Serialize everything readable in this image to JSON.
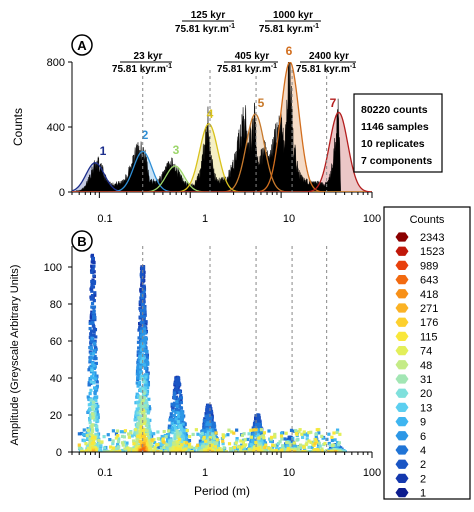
{
  "panel_a": {
    "letter": "A",
    "ylabel": "Counts",
    "yticks": [
      "0",
      "400",
      "800"
    ],
    "xticks": [
      "0.1",
      "1",
      "10",
      "100"
    ],
    "stats": [
      "80220 counts",
      "1146 samples",
      "10 replicates",
      "7 components"
    ],
    "annotations": [
      {
        "line1": "23 kyr",
        "line2": "75.81 kyr.m",
        "sup": "-1"
      },
      {
        "line1": "125 kyr",
        "line2": "75.81 kyr.m",
        "sup": "-1"
      },
      {
        "line1": "405 kyr",
        "line2": "75.81 kyr.m",
        "sup": "-1"
      },
      {
        "line1": "1000 kyr",
        "line2": "75.81 kyr.m",
        "sup": "-1"
      },
      {
        "line1": "2400 kyr",
        "line2": "75.81 kyr.m",
        "sup": "-1"
      }
    ],
    "component_labels": [
      "1",
      "2",
      "3",
      "4",
      "5",
      "6",
      "7"
    ]
  },
  "panel_b": {
    "letter": "B",
    "ylabel": "Amplitude (Greyscale Arbitrary Units)",
    "xlabel": "Period (m)",
    "yticks": [
      "0",
      "20",
      "40",
      "60",
      "80",
      "100"
    ],
    "xticks": [
      "0.1",
      "1",
      "10",
      "100"
    ]
  },
  "legend": {
    "title": "Counts",
    "entries": [
      "2343",
      "1523",
      "989",
      "643",
      "418",
      "271",
      "176",
      "115",
      "74",
      "48",
      "31",
      "20",
      "13",
      "9",
      "6",
      "4",
      "2",
      "2",
      "1"
    ],
    "colors": [
      "#8b0000",
      "#c0180a",
      "#e8400c",
      "#f26a10",
      "#f79018",
      "#fbb224",
      "#fdd02e",
      "#f9e73a",
      "#e3ef5a",
      "#c4eb86",
      "#a2e6b4",
      "#7fe0dc",
      "#5ccff0",
      "#3eb5f0",
      "#2c97e6",
      "#2074d6",
      "#1a55c4",
      "#1438ae",
      "#0c1c8e"
    ]
  },
  "chart_data": [
    {
      "type": "area",
      "title": "",
      "ylabel": "Counts",
      "xscale": "log",
      "xlim": [
        0.05,
        100
      ],
      "ylim": [
        0,
        800
      ],
      "vlines_x": [
        0.3,
        1.65,
        5.3,
        13.2,
        31.7
      ],
      "components": [
        {
          "name": "1",
          "color": "#1c2e8c",
          "peak_x": 0.09,
          "peak_y": 180
        },
        {
          "name": "2",
          "color": "#2f8fd6",
          "peak_x": 0.3,
          "peak_y": 250
        },
        {
          "name": "3",
          "color": "#9cd66a",
          "peak_x": 0.68,
          "peak_y": 160
        },
        {
          "name": "4",
          "color": "#d9c21c",
          "peak_x": 1.6,
          "peak_y": 420
        },
        {
          "name": "5",
          "color": "#c87a2c",
          "peak_x": 5.2,
          "peak_y": 480
        },
        {
          "name": "6",
          "color": "#d26e1e",
          "peak_x": 12.5,
          "peak_y": 800
        },
        {
          "name": "7",
          "color": "#b41e1e",
          "peak_x": 43.0,
          "peak_y": 490
        }
      ],
      "histogram": {
        "x": [
          0.06,
          0.07,
          0.08,
          0.09,
          0.1,
          0.11,
          0.12,
          0.14,
          0.17,
          0.2,
          0.23,
          0.26,
          0.28,
          0.3,
          0.32,
          0.35,
          0.4,
          0.45,
          0.5,
          0.56,
          0.62,
          0.68,
          0.75,
          0.85,
          0.95,
          1.1,
          1.3,
          1.45,
          1.55,
          1.6,
          1.7,
          1.85,
          2.1,
          2.5,
          3.0,
          3.5,
          4.0,
          4.4,
          4.8,
          5.1,
          5.3,
          5.6,
          6.0,
          6.6,
          7.3,
          8.2,
          9.2,
          10.2,
          11.0,
          11.6,
          12.1,
          12.5,
          12.9,
          13.4,
          14.2,
          15.5,
          17.5,
          20.0,
          23.0,
          26.0,
          29.0,
          32.0,
          35.0,
          38.0,
          41.0,
          43.0,
          45.0
        ],
        "y": [
          8,
          30,
          110,
          175,
          165,
          120,
          70,
          45,
          55,
          90,
          170,
          250,
          240,
          260,
          215,
          90,
          60,
          70,
          100,
          140,
          165,
          150,
          110,
          60,
          45,
          40,
          120,
          300,
          420,
          390,
          200,
          90,
          70,
          80,
          160,
          330,
          450,
          300,
          360,
          470,
          320,
          140,
          200,
          250,
          180,
          280,
          380,
          420,
          260,
          500,
          700,
          800,
          650,
          320,
          230,
          120,
          70,
          60,
          50,
          55,
          45,
          60,
          100,
          220,
          380,
          490,
          60
        ]
      }
    },
    {
      "type": "heatmap",
      "title": "",
      "xlabel": "Period (m)",
      "ylabel": "Amplitude (Greyscale Arbitrary Units)",
      "xscale": "log",
      "xlim": [
        0.05,
        100
      ],
      "ylim": [
        0,
        110
      ],
      "ridges": [
        {
          "x": 0.085,
          "max_amplitude": 105
        },
        {
          "x": 0.3,
          "max_amplitude": 99
        },
        {
          "x": 0.72,
          "max_amplitude": 40
        },
        {
          "x": 1.6,
          "max_amplitude": 25
        },
        {
          "x": 5.5,
          "max_amplitude": 20
        },
        {
          "x": 12.5,
          "max_amplitude": 8
        },
        {
          "x": 40.0,
          "max_amplitude": 4
        }
      ],
      "legend_title": "Counts",
      "legend_values": [
        2343,
        1523,
        989,
        643,
        418,
        271,
        176,
        115,
        74,
        48,
        31,
        20,
        13,
        9,
        6,
        4,
        2,
        2,
        1
      ]
    }
  ]
}
